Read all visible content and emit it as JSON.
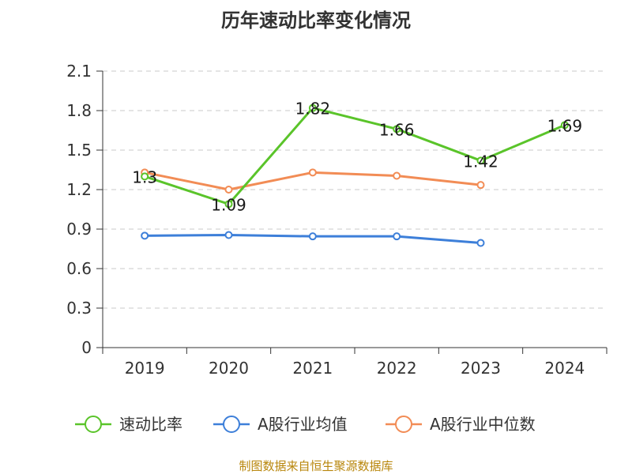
{
  "chart_data": {
    "type": "line",
    "title": "历年速动比率变化情况",
    "categories": [
      "2019",
      "2020",
      "2021",
      "2022",
      "2023",
      "2024"
    ],
    "ylim": [
      0,
      2.1
    ],
    "yticks": [
      "0",
      "0.3",
      "0.6",
      "0.9",
      "1.2",
      "1.5",
      "1.8",
      "2.1"
    ],
    "grid": true,
    "legend_position": "bottom",
    "series": [
      {
        "name": "速动比率",
        "color": "#5ac42a",
        "values": [
          1.3,
          1.09,
          1.82,
          1.66,
          1.42,
          1.69
        ],
        "labels": [
          "1.3",
          "1.09",
          "1.82",
          "1.66",
          "1.42",
          "1.69"
        ]
      },
      {
        "name": "A股行业均值",
        "color": "#3d7fd9",
        "values": [
          0.85,
          0.855,
          0.845,
          0.845,
          0.795,
          null
        ]
      },
      {
        "name": "A股行业中位数",
        "color": "#f28c55",
        "values": [
          1.33,
          1.2,
          1.33,
          1.305,
          1.235,
          null
        ]
      }
    ],
    "source": "制图数据来自恒生聚源数据库"
  }
}
